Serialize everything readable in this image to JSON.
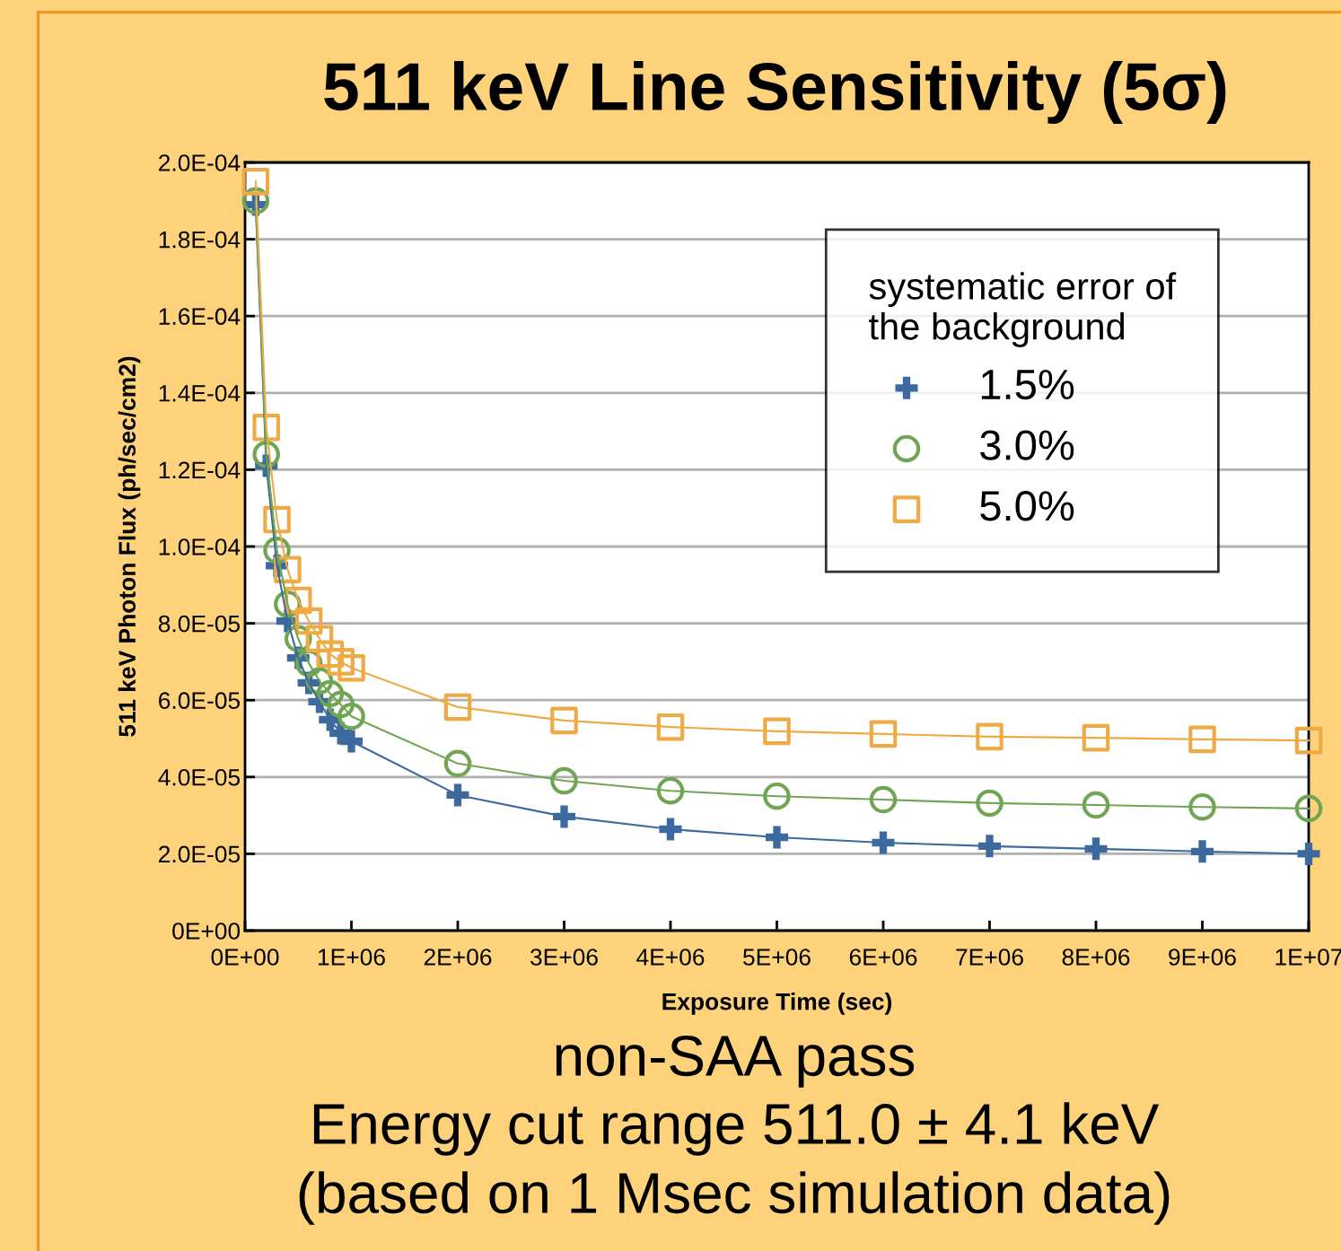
{
  "chart_data": {
    "type": "line",
    "title": "511 keV Line Sensitivity (5σ)",
    "xlabel": "Exposure Time (sec)",
    "ylabel": "511 keV Photon Flux (ph/sec/cm2)",
    "legend_title": "systematic error of\nthe background",
    "legend": "top right",
    "grid": "y",
    "x": [
      100000,
      200000,
      300000,
      400000,
      500000,
      600000,
      700000,
      800000,
      900000,
      1000000,
      2000000,
      3000000,
      4000000,
      5000000,
      6000000,
      7000000,
      8000000,
      9000000,
      10000000
    ],
    "series": [
      {
        "name": "1.5%",
        "color": "#3d6a9e",
        "marker": "cross",
        "values": [
          0.000189,
          0.000121,
          9.5e-05,
          8.06e-05,
          7.1e-05,
          6.45e-05,
          5.96e-05,
          5.49e-05,
          5.14e-05,
          4.93e-05,
          3.53e-05,
          2.97e-05,
          2.64e-05,
          2.43e-05,
          2.29e-05,
          2.2e-05,
          2.13e-05,
          2.06e-05,
          2e-05
        ]
      },
      {
        "name": "3.0%",
        "color": "#6fa553",
        "marker": "circle",
        "values": [
          0.00019,
          0.000124,
          9.9e-05,
          8.5e-05,
          7.6e-05,
          6.96e-05,
          6.5e-05,
          6.17e-05,
          5.89e-05,
          5.58e-05,
          4.35e-05,
          3.9e-05,
          3.64e-05,
          3.5e-05,
          3.41e-05,
          3.32e-05,
          3.27e-05,
          3.22e-05,
          3.18e-05
        ]
      },
      {
        "name": "5.0%",
        "color": "#eeaa45",
        "marker": "square",
        "values": [
          0.000195,
          0.000131,
          0.000107,
          9.4e-05,
          8.6e-05,
          8.06e-05,
          7.6e-05,
          7.2e-05,
          7e-05,
          6.84e-05,
          5.82e-05,
          5.47e-05,
          5.3e-05,
          5.19e-05,
          5.12e-05,
          5.05e-05,
          5.02e-05,
          4.98e-05,
          4.95e-05
        ]
      }
    ],
    "xlim": [
      0,
      10000000
    ],
    "xticks": [
      {
        "value": 0,
        "label": "0E+00"
      },
      {
        "value": 1000000,
        "label": "1E+06"
      },
      {
        "value": 2000000,
        "label": "2E+06"
      },
      {
        "value": 3000000,
        "label": "3E+06"
      },
      {
        "value": 4000000,
        "label": "4E+06"
      },
      {
        "value": 5000000,
        "label": "5E+06"
      },
      {
        "value": 6000000,
        "label": "6E+06"
      },
      {
        "value": 7000000,
        "label": "7E+06"
      },
      {
        "value": 8000000,
        "label": "8E+06"
      },
      {
        "value": 9000000,
        "label": "9E+06"
      },
      {
        "value": 10000000,
        "label": "1E+07"
      }
    ],
    "ylim": [
      0,
      0.0002
    ],
    "yticks": [
      {
        "value": 0,
        "label": "0E+00"
      },
      {
        "value": 2e-05,
        "label": "2.0E-05"
      },
      {
        "value": 4e-05,
        "label": "4.0E-05"
      },
      {
        "value": 6e-05,
        "label": "6.0E-05"
      },
      {
        "value": 8e-05,
        "label": "8.0E-05"
      },
      {
        "value": 0.0001,
        "label": "1.0E-04"
      },
      {
        "value": 0.00012,
        "label": "1.2E-04"
      },
      {
        "value": 0.00014,
        "label": "1.4E-04"
      },
      {
        "value": 0.00016,
        "label": "1.6E-04"
      },
      {
        "value": 0.00018,
        "label": "1.8E-04"
      },
      {
        "value": 0.0002,
        "label": "2.0E-04"
      }
    ],
    "annotations": [
      "non-SAA pass",
      "Energy cut range 511.0 ± 4.1 keV",
      "(based on 1 Msec simulation data)"
    ]
  }
}
